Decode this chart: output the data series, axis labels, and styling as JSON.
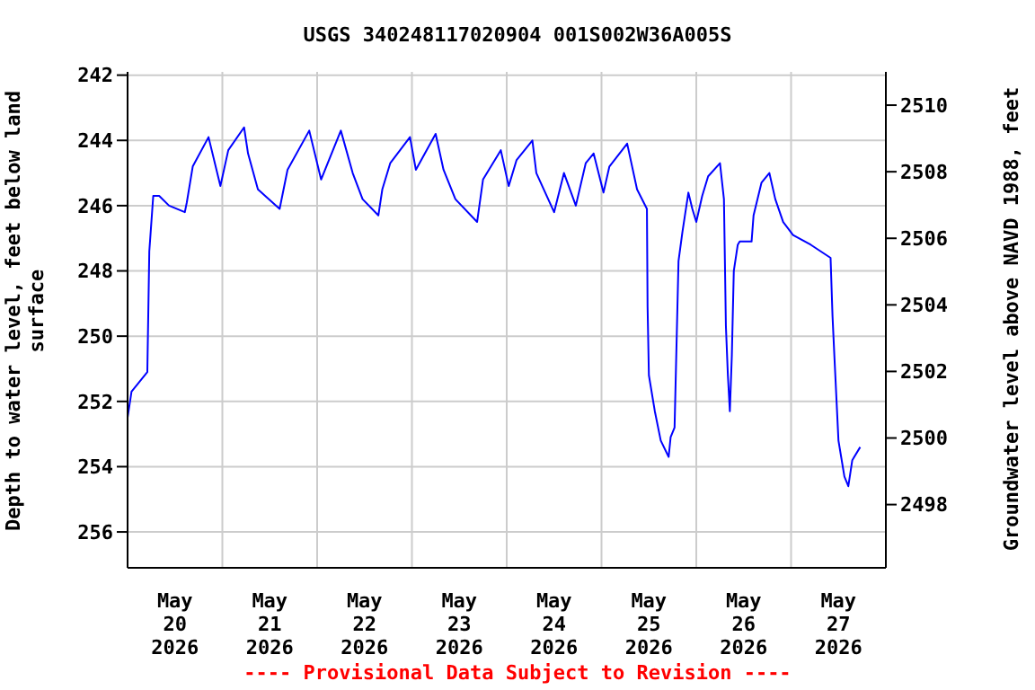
{
  "chart_data": {
    "type": "line",
    "title": "USGS 340248117020904 001S002W36A005S",
    "ylabel": "Depth to water level, feet below land surface",
    "y2label": "Groundwater level above NAVD 1988, feet",
    "annotations": [
      "---- Provisional Data Subject to Revision ----"
    ],
    "x": [
      "2026-05-20T00:00",
      "2026-05-20T01:00",
      "2026-05-20T05:00",
      "2026-05-20T05:30",
      "2026-05-20T06:30",
      "2026-05-20T08:00",
      "2026-05-20T10:30",
      "2026-05-20T14:30",
      "2026-05-20T15:00",
      "2026-05-20T16:30",
      "2026-05-20T20:30",
      "2026-05-20T23:30",
      "2026-05-21T01:30",
      "2026-05-21T05:30",
      "2026-05-21T06:30",
      "2026-05-21T09:00",
      "2026-05-21T14:30",
      "2026-05-21T16:30",
      "2026-05-21T22:00",
      "2026-05-22T01:00",
      "2026-05-22T06:00",
      "2026-05-22T09:00",
      "2026-05-22T11:30",
      "2026-05-22T15:30",
      "2026-05-22T16:30",
      "2026-05-22T18:30",
      "2026-05-22T23:30",
      "2026-05-23T01:00",
      "2026-05-23T06:00",
      "2026-05-23T08:00",
      "2026-05-23T11:00",
      "2026-05-23T16:30",
      "2026-05-23T18:00",
      "2026-05-23T22:30",
      "2026-05-24T00:30",
      "2026-05-24T02:30",
      "2026-05-24T06:30",
      "2026-05-24T07:30",
      "2026-05-24T12:00",
      "2026-05-24T14:30",
      "2026-05-24T17:30",
      "2026-05-24T20:00",
      "2026-05-24T22:00",
      "2026-05-25T00:30",
      "2026-05-25T02:00",
      "2026-05-25T06:30",
      "2026-05-25T09:00",
      "2026-05-25T11:30",
      "2026-05-25T11:40",
      "2026-05-25T12:00",
      "2026-05-25T13:30",
      "2026-05-25T15:00",
      "2026-05-25T17:00",
      "2026-05-25T17:30",
      "2026-05-25T18:30",
      "2026-05-25T19:30",
      "2026-05-25T20:30",
      "2026-05-25T22:00",
      "2026-05-25T23:00",
      "2026-05-26T00:00",
      "2026-05-26T01:30",
      "2026-05-26T03:00",
      "2026-05-26T06:00",
      "2026-05-26T07:00",
      "2026-05-26T07:30",
      "2026-05-26T08:00",
      "2026-05-26T08:30",
      "2026-05-26T09:00",
      "2026-05-26T09:30",
      "2026-05-26T10:30",
      "2026-05-26T11:00",
      "2026-05-26T14:00",
      "2026-05-26T14:30",
      "2026-05-26T16:30",
      "2026-05-26T18:30",
      "2026-05-26T20:00",
      "2026-05-26T22:00",
      "2026-05-27T00:30",
      "2026-05-27T05:00",
      "2026-05-27T10:00",
      "2026-05-27T10:30",
      "2026-05-27T11:00",
      "2026-05-27T12:00",
      "2026-05-27T13:30",
      "2026-05-27T14:30",
      "2026-05-27T15:30",
      "2026-05-27T17:30"
    ],
    "series": [
      {
        "color": "#0000ff",
        "values": [
          252.5,
          251.7,
          251.1,
          247.4,
          245.7,
          245.7,
          246.0,
          246.2,
          245.9,
          244.8,
          243.9,
          245.4,
          244.3,
          243.6,
          244.4,
          245.5,
          246.1,
          244.9,
          243.7,
          245.2,
          243.7,
          245.0,
          245.8,
          246.3,
          245.5,
          244.7,
          243.9,
          244.9,
          243.8,
          244.9,
          245.8,
          246.5,
          245.2,
          244.3,
          245.4,
          244.6,
          244.0,
          245.0,
          246.2,
          245.0,
          246.0,
          244.7,
          244.4,
          245.6,
          244.8,
          244.1,
          245.5,
          246.1,
          249.1,
          251.2,
          252.3,
          253.2,
          253.7,
          253.1,
          252.8,
          247.7,
          246.8,
          245.6,
          246.1,
          246.5,
          245.7,
          245.1,
          244.7,
          245.8,
          249.7,
          251.2,
          252.3,
          250.6,
          248.0,
          247.2,
          247.1,
          247.1,
          246.3,
          245.3,
          245.0,
          245.8,
          246.5,
          246.9,
          247.2,
          247.6,
          249.4,
          250.7,
          253.2,
          254.3,
          254.6,
          253.8,
          253.4
        ]
      }
    ],
    "xlim": [
      "2026-05-20T00:00",
      "2026-05-28T00:00"
    ],
    "xticks": [
      {
        "value": "2026-05-20T12:00",
        "label": "May\n20\n2026"
      },
      {
        "value": "2026-05-21T00:00",
        "label": null
      },
      {
        "value": "2026-05-21T12:00",
        "label": "May\n21\n2026"
      },
      {
        "value": "2026-05-22T00:00",
        "label": null
      },
      {
        "value": "2026-05-22T12:00",
        "label": "May\n22\n2026"
      },
      {
        "value": "2026-05-23T00:00",
        "label": null
      },
      {
        "value": "2026-05-23T12:00",
        "label": "May\n23\n2026"
      },
      {
        "value": "2026-05-24T00:00",
        "label": null
      },
      {
        "value": "2026-05-24T12:00",
        "label": "May\n24\n2026"
      },
      {
        "value": "2026-05-25T00:00",
        "label": null
      },
      {
        "value": "2026-05-25T12:00",
        "label": "May\n25\n2026"
      },
      {
        "value": "2026-05-26T00:00",
        "label": null
      },
      {
        "value": "2026-05-26T12:00",
        "label": "May\n26\n2026"
      },
      {
        "value": "2026-05-27T00:00",
        "label": null
      },
      {
        "value": "2026-05-27T12:00",
        "label": "May\n27\n2026"
      }
    ],
    "ylim": [
      257.1,
      241.9
    ],
    "yticks": [
      242,
      244,
      246,
      248,
      250,
      252,
      254,
      256
    ],
    "y2lim": [
      2496.1,
      2511.0
    ],
    "y2ticks": [
      2498,
      2500,
      2502,
      2504,
      2506,
      2508,
      2510
    ],
    "grid": true,
    "legend": false,
    "marker": "none",
    "line_style": "solid"
  }
}
